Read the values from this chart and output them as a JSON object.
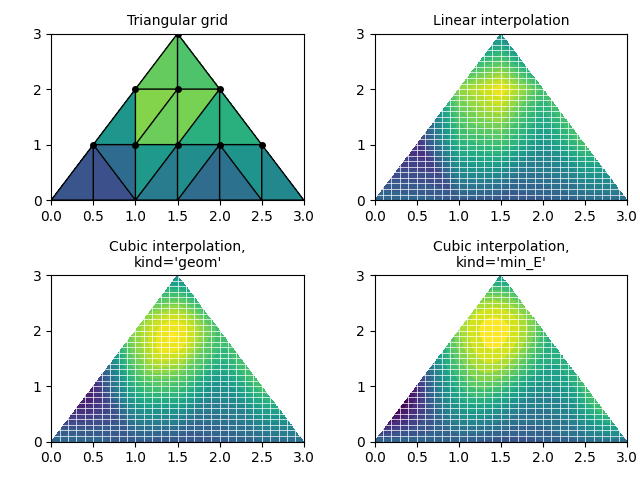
{
  "title1": "Triangular grid",
  "title2": "Linear interpolation",
  "title3": "Cubic interpolation,\nkind='geom'",
  "title4": "Cubic interpolation,\nkind='min_E'",
  "xlim": [
    0.0,
    3.0
  ],
  "ylim": [
    0.0,
    3.0
  ],
  "xticks": [
    0.0,
    0.5,
    1.0,
    1.5,
    2.0,
    2.5,
    3.0
  ],
  "yticks": [
    0,
    1,
    2,
    3
  ],
  "cmap": "viridis",
  "levels": 20,
  "grid_color": "#888888",
  "grid_lw": 0.5,
  "figsize": [
    6.4,
    4.8
  ],
  "dpi": 100
}
